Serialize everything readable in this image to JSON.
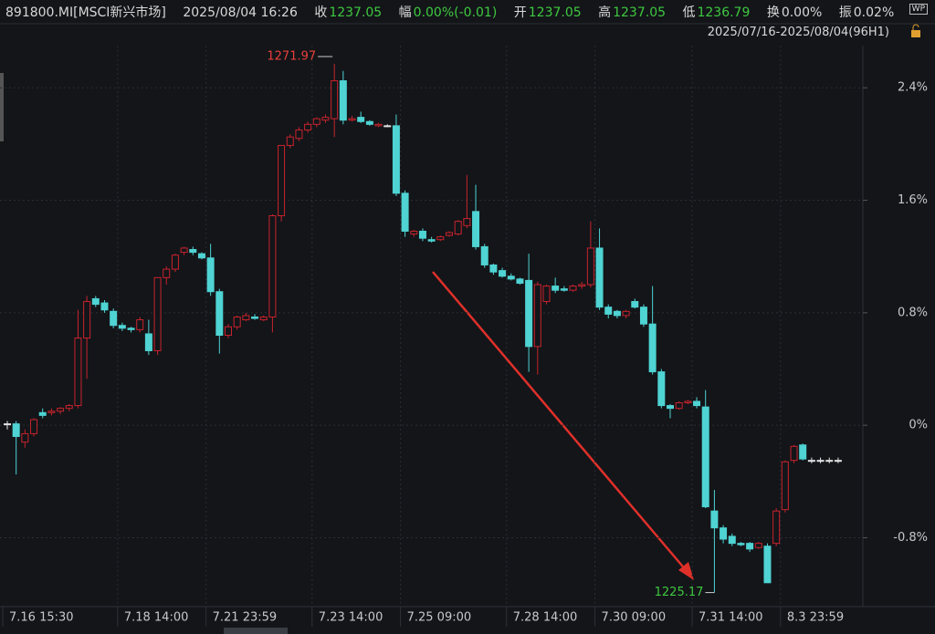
{
  "header": {
    "symbol": "891800.MI[MSCI新兴市场]",
    "datetime": "2025/08/04 16:26",
    "close_label": "收",
    "close": "1237.05",
    "change_label": "幅",
    "change": "0.00%(-0.01)",
    "open_label": "开",
    "open": "1237.05",
    "high_label": "高",
    "high": "1237.05",
    "low_label": "低",
    "low": "1236.79",
    "turnover_label": "换",
    "turnover": "0.00%",
    "amplitude_label": "振",
    "amplitude": "0.02%",
    "badge": "WP",
    "range": "2025/07/16-2025/08/04(96H1)"
  },
  "chart_data": {
    "type": "candlestick",
    "categories": [
      "7.16 15:30",
      null,
      null,
      null,
      null,
      null,
      null,
      null,
      null,
      null,
      null,
      null,
      null,
      "7.18 14:00",
      null,
      null,
      null,
      null,
      null,
      null,
      null,
      null,
      null,
      "7.21 23:59",
      null,
      null,
      null,
      null,
      null,
      null,
      null,
      null,
      null,
      null,
      null,
      "7.23 14:00",
      null,
      null,
      null,
      null,
      null,
      null,
      null,
      null,
      null,
      "7.25 09:00",
      null,
      null,
      null,
      null,
      null,
      null,
      null,
      null,
      null,
      null,
      null,
      "7.28 14:00",
      null,
      null,
      null,
      null,
      null,
      null,
      null,
      null,
      null,
      "7.30 09:00",
      null,
      null,
      null,
      null,
      null,
      null,
      null,
      null,
      null,
      null,
      "7.31 14:00",
      null,
      null,
      null,
      null,
      null,
      null,
      null,
      null,
      null,
      "8.3 23:59",
      null,
      null,
      null,
      null,
      null,
      null
    ],
    "open": [
      0.01,
      0.01,
      -0.12,
      -0.06,
      0.09,
      0.09,
      0.1,
      0.12,
      0.14,
      0.62,
      0.9,
      0.87,
      0.81,
      0.71,
      0.69,
      0.68,
      0.65,
      0.53,
      1.05,
      1.11,
      1.23,
      1.25,
      1.22,
      1.19,
      0.95,
      0.64,
      0.7,
      0.75,
      0.77,
      0.75,
      0.77,
      1.49,
      1.99,
      2.04,
      2.1,
      2.14,
      2.17,
      2.18,
      2.45,
      2.17,
      2.19,
      2.16,
      2.13,
      2.13,
      2.13,
      1.65,
      1.36,
      1.38,
      1.32,
      1.32,
      1.35,
      1.36,
      1.42,
      1.52,
      1.27,
      1.14,
      1.1,
      1.06,
      1.04,
      1.03,
      0.56,
      0.88,
      0.99,
      0.97,
      0.96,
      0.99,
      1.0,
      1.26,
      0.84,
      0.81,
      0.78,
      0.88,
      0.84,
      0.72,
      0.38,
      0.14,
      0.12,
      0.16,
      0.17,
      0.13,
      -0.61,
      -0.73,
      -0.79,
      -0.84,
      -0.84,
      -0.87,
      -0.86,
      -0.84,
      -0.6,
      -0.25,
      -0.14,
      -0.25,
      -0.25,
      -0.25,
      -0.25
    ],
    "high": [
      0.03,
      0.03,
      -0.03,
      0.05,
      0.12,
      0.12,
      0.13,
      0.15,
      0.82,
      0.92,
      0.92,
      0.89,
      0.83,
      0.73,
      0.7,
      0.77,
      0.75,
      1.05,
      1.13,
      1.22,
      1.27,
      1.27,
      1.23,
      1.29,
      0.97,
      0.72,
      0.78,
      0.8,
      0.79,
      0.78,
      1.5,
      1.99,
      2.07,
      2.12,
      2.16,
      2.19,
      2.21,
      2.57,
      2.52,
      2.2,
      2.23,
      2.17,
      2.15,
      2.14,
      2.21,
      1.67,
      1.39,
      1.4,
      1.34,
      1.35,
      1.38,
      1.46,
      1.78,
      1.71,
      1.29,
      1.15,
      1.12,
      1.08,
      1.05,
      1.22,
      1.02,
      1.0,
      1.05,
      0.99,
      1.0,
      1.02,
      1.45,
      1.4,
      0.86,
      0.82,
      0.82,
      0.9,
      0.86,
      0.99,
      0.4,
      0.15,
      0.17,
      0.18,
      0.2,
      0.25,
      -0.46,
      -0.71,
      -0.77,
      -0.83,
      -0.83,
      -0.83,
      -0.84,
      -0.59,
      -0.25,
      -0.14,
      -0.13,
      -0.23,
      -0.23,
      -0.23,
      -0.23
    ],
    "low": [
      -0.03,
      -0.35,
      -0.16,
      -0.08,
      0.05,
      0.07,
      0.08,
      0.1,
      0.12,
      0.33,
      0.84,
      0.8,
      0.69,
      0.67,
      0.66,
      0.66,
      0.5,
      0.5,
      1.0,
      1.09,
      1.21,
      1.21,
      1.18,
      0.92,
      0.51,
      0.62,
      0.68,
      0.74,
      0.75,
      0.74,
      0.66,
      1.45,
      1.97,
      2.02,
      2.08,
      2.12,
      2.15,
      2.05,
      2.14,
      2.16,
      2.15,
      2.13,
      2.12,
      2.12,
      1.63,
      1.34,
      1.34,
      1.31,
      1.3,
      1.31,
      1.34,
      1.35,
      1.4,
      1.25,
      1.12,
      1.07,
      1.05,
      1.03,
      1.0,
      0.38,
      0.36,
      0.86,
      0.94,
      0.95,
      0.95,
      0.97,
      0.98,
      0.82,
      0.76,
      0.76,
      0.76,
      0.83,
      0.7,
      0.36,
      0.12,
      0.05,
      0.11,
      0.15,
      0.12,
      -0.59,
      -1.19,
      -0.84,
      -0.86,
      -0.86,
      -0.9,
      -0.88,
      -1.12,
      -0.86,
      -0.62,
      -0.27,
      -0.25,
      -0.27,
      -0.27,
      -0.27,
      -0.27
    ],
    "close": [
      0.01,
      -0.08,
      -0.06,
      0.04,
      0.07,
      0.1,
      0.12,
      0.14,
      0.62,
      0.88,
      0.86,
      0.82,
      0.71,
      0.69,
      0.68,
      0.75,
      0.53,
      1.05,
      1.11,
      1.21,
      1.26,
      1.23,
      1.19,
      0.95,
      0.64,
      0.7,
      0.77,
      0.78,
      0.76,
      0.77,
      1.49,
      1.99,
      2.05,
      2.1,
      2.14,
      2.18,
      2.19,
      2.45,
      2.17,
      2.18,
      2.16,
      2.14,
      2.14,
      2.13,
      1.65,
      1.38,
      1.38,
      1.33,
      1.31,
      1.34,
      1.37,
      1.45,
      1.47,
      1.27,
      1.14,
      1.09,
      1.06,
      1.04,
      1.01,
      0.56,
      1.0,
      0.99,
      0.96,
      0.96,
      0.99,
      1.0,
      1.26,
      0.84,
      0.79,
      0.78,
      0.81,
      0.84,
      0.72,
      0.38,
      0.14,
      0.12,
      0.16,
      0.17,
      0.14,
      -0.58,
      -0.73,
      -0.81,
      -0.84,
      -0.85,
      -0.88,
      -0.84,
      -1.12,
      -0.61,
      -0.26,
      -0.15,
      -0.24,
      -0.25,
      -0.25,
      -0.25,
      -0.25
    ],
    "up_color": "#c8232c",
    "down_color": "#4fd3d3",
    "flat_color": "#e6e6e6",
    "ylim": [
      -1.29,
      2.7
    ],
    "yticks": [
      {
        "value": 2.4,
        "label": "2.4%"
      },
      {
        "value": 1.6,
        "label": "1.6%"
      },
      {
        "value": 0.8,
        "label": "0.8%"
      },
      {
        "value": 0,
        "label": "0%"
      },
      {
        "value": -0.8,
        "label": "-0.8%"
      }
    ],
    "grid": true,
    "max_label": "1271.97",
    "min_label": "1225.17"
  }
}
